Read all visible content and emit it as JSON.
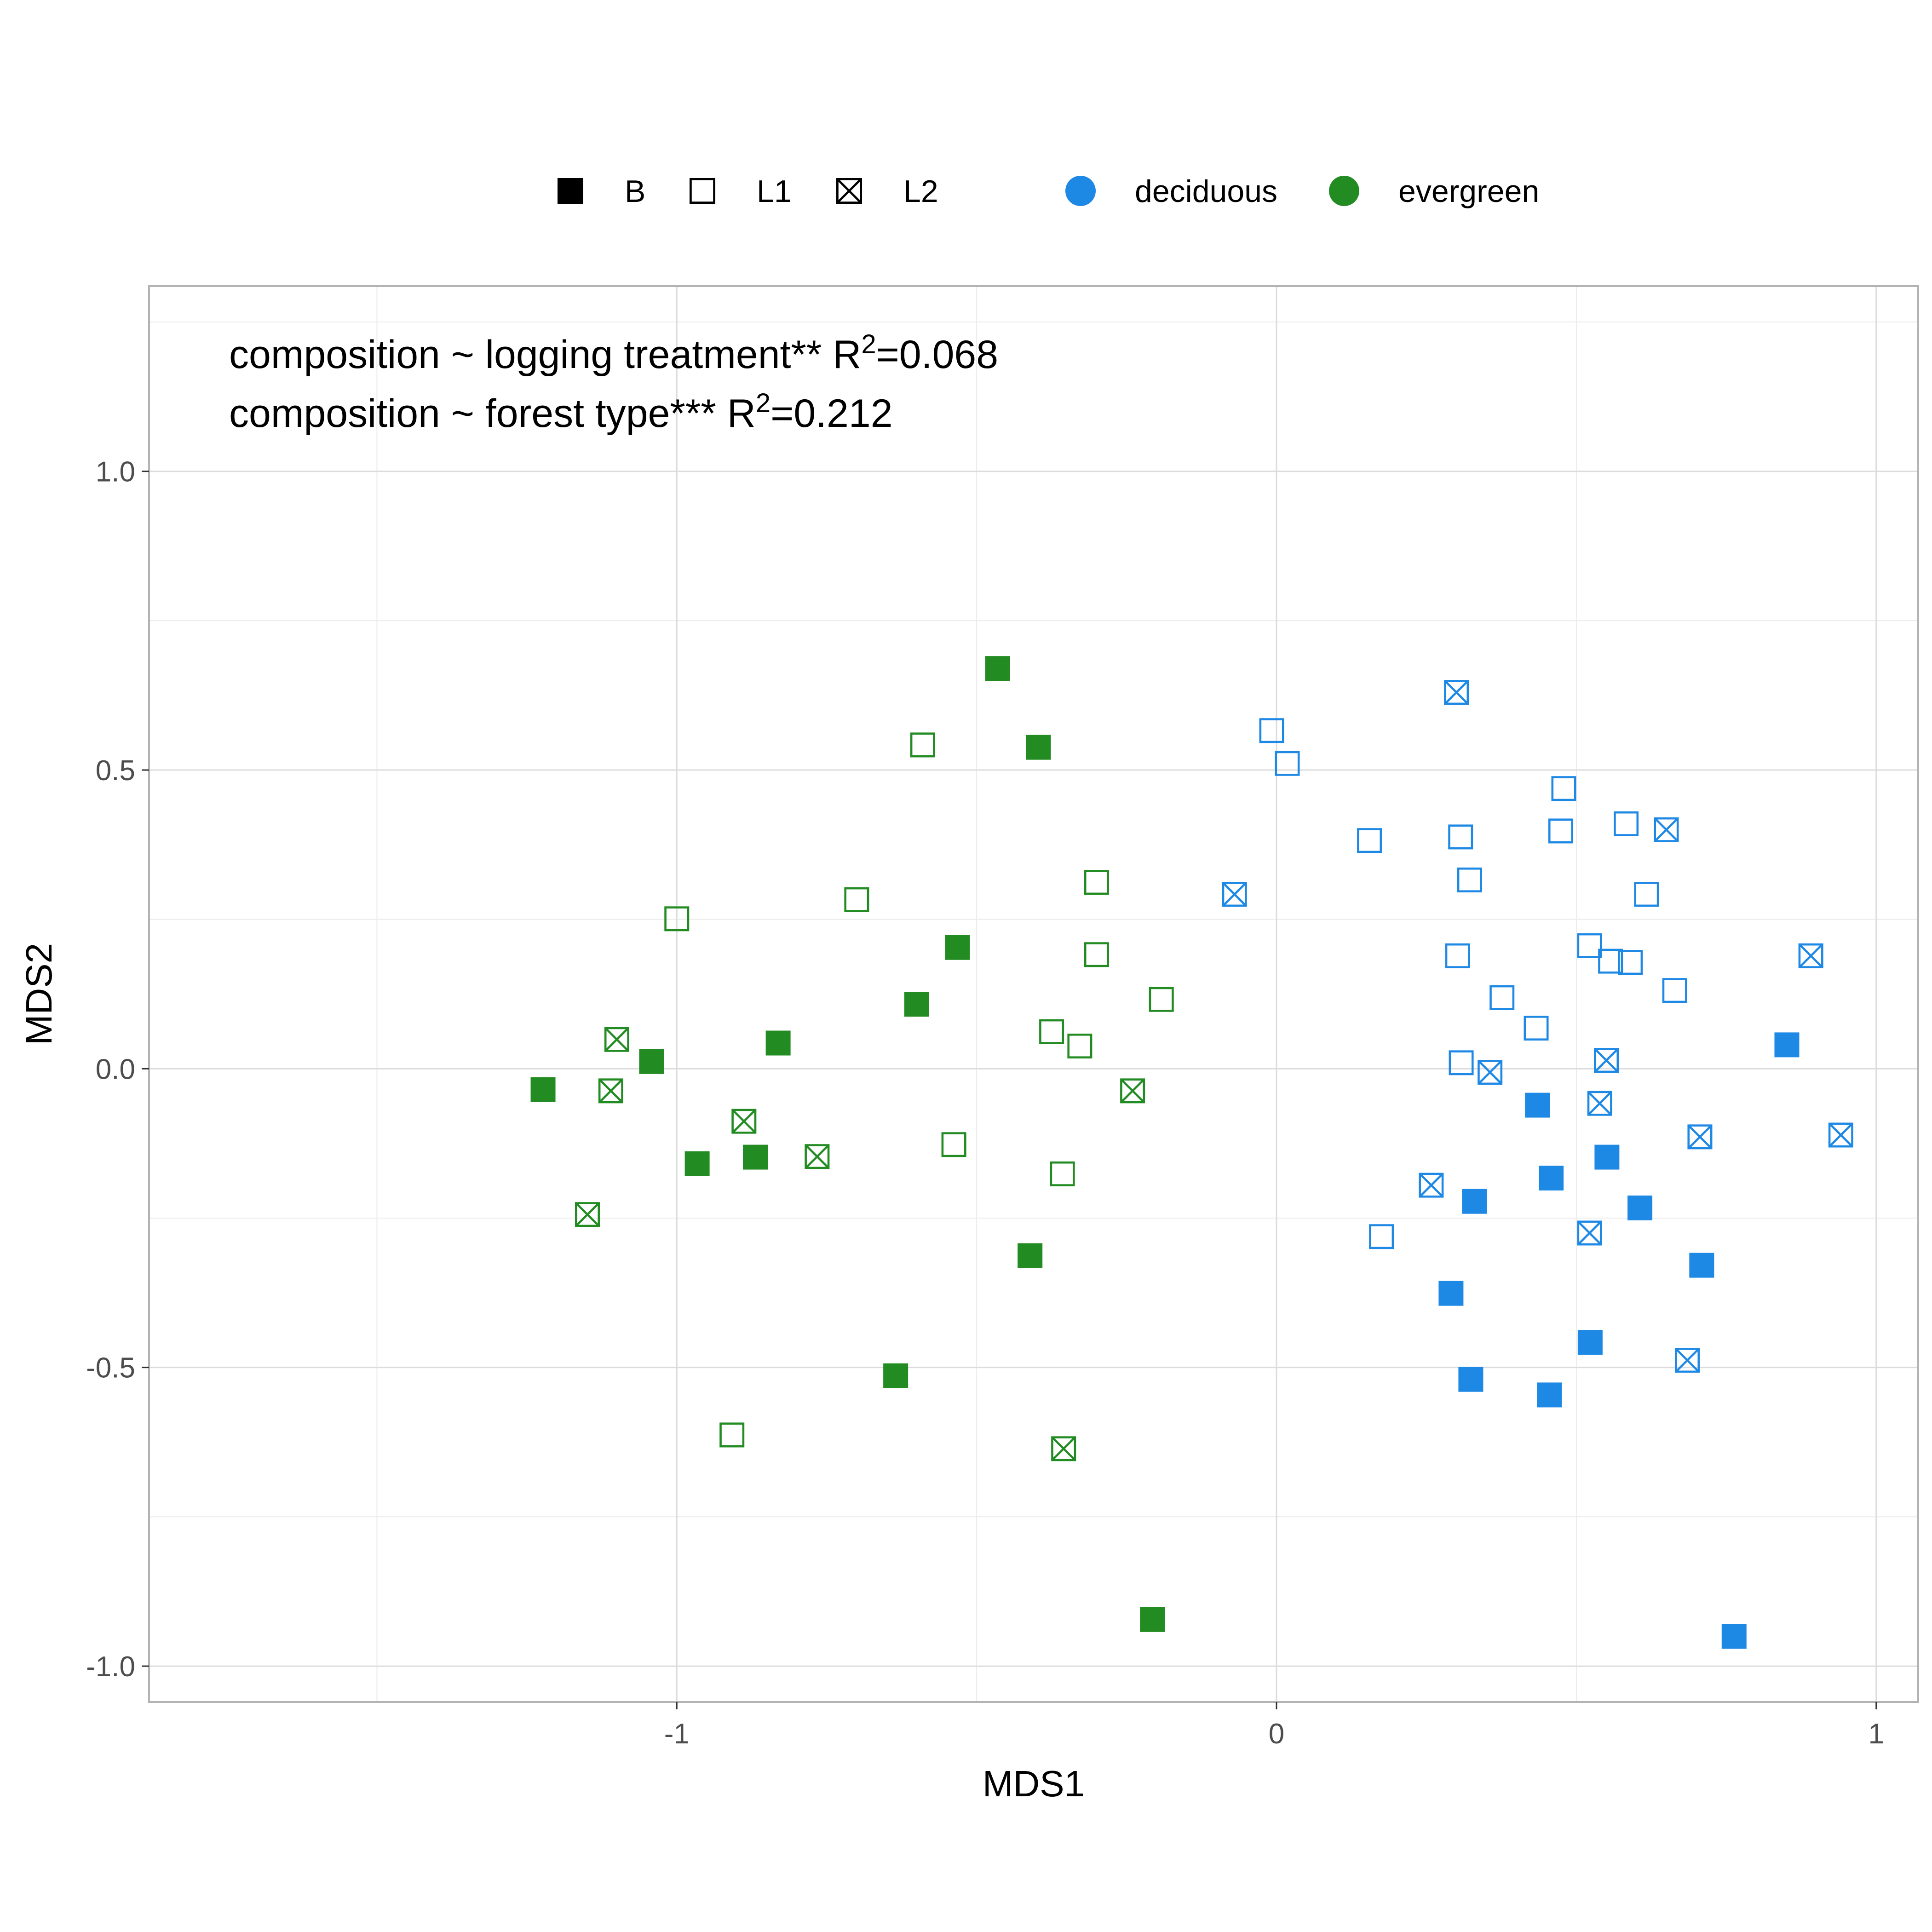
{
  "chart_data": {
    "type": "scatter",
    "xlabel": "MDS1",
    "ylabel": "MDS2",
    "xlim": [
      -1.88,
      1.07
    ],
    "ylim": [
      -1.06,
      1.31
    ],
    "x_ticks": [
      -1,
      0,
      1
    ],
    "x_tick_labels": [
      "-1",
      "0",
      "1"
    ],
    "y_ticks": [
      -1.0,
      -0.5,
      0.0,
      0.5,
      1.0
    ],
    "y_tick_labels": [
      "-1.0",
      "-0.5",
      "0.0",
      "0.5",
      "1.0"
    ],
    "grid": true,
    "legend_placement": "top",
    "legend_shape": [
      {
        "key": "B",
        "label": "B",
        "shape": "filled-square"
      },
      {
        "key": "L1",
        "label": "L1",
        "shape": "open-square"
      },
      {
        "key": "L2",
        "label": "L2",
        "shape": "crossed-square"
      }
    ],
    "legend_color": [
      {
        "key": "deciduous",
        "label": "deciduous",
        "color": "#1E88E5"
      },
      {
        "key": "evergreen",
        "label": "evergreen",
        "color": "#228B22"
      }
    ],
    "annotations": [
      {
        "prefix": "composition ~ logging treatment** R",
        "sup": "2",
        "suffix": "=0.068"
      },
      {
        "prefix": "composition ~ forest type*** R",
        "sup": "2",
        "suffix": "=0.212"
      }
    ],
    "points": [
      {
        "x": -0.465,
        "y": 0.67,
        "treatment": "B",
        "forest": "evergreen"
      },
      {
        "x": -0.397,
        "y": 0.538,
        "treatment": "B",
        "forest": "evergreen"
      },
      {
        "x": -0.532,
        "y": 0.203,
        "treatment": "B",
        "forest": "evergreen"
      },
      {
        "x": -0.6,
        "y": 0.108,
        "treatment": "B",
        "forest": "evergreen"
      },
      {
        "x": -0.831,
        "y": 0.043,
        "treatment": "B",
        "forest": "evergreen"
      },
      {
        "x": -1.042,
        "y": 0.012,
        "treatment": "B",
        "forest": "evergreen"
      },
      {
        "x": -1.223,
        "y": -0.035,
        "treatment": "B",
        "forest": "evergreen"
      },
      {
        "x": -0.966,
        "y": -0.159,
        "treatment": "B",
        "forest": "evergreen"
      },
      {
        "x": -0.869,
        "y": -0.148,
        "treatment": "B",
        "forest": "evergreen"
      },
      {
        "x": -0.411,
        "y": -0.313,
        "treatment": "B",
        "forest": "evergreen"
      },
      {
        "x": -0.635,
        "y": -0.514,
        "treatment": "B",
        "forest": "evergreen"
      },
      {
        "x": -0.207,
        "y": -0.922,
        "treatment": "B",
        "forest": "evergreen"
      },
      {
        "x": -0.59,
        "y": 0.542,
        "treatment": "L1",
        "forest": "evergreen"
      },
      {
        "x": -1.0,
        "y": 0.251,
        "treatment": "L1",
        "forest": "evergreen"
      },
      {
        "x": -0.7,
        "y": 0.283,
        "treatment": "L1",
        "forest": "evergreen"
      },
      {
        "x": -0.3,
        "y": 0.312,
        "treatment": "L1",
        "forest": "evergreen"
      },
      {
        "x": -0.3,
        "y": 0.191,
        "treatment": "L1",
        "forest": "evergreen"
      },
      {
        "x": -0.192,
        "y": 0.116,
        "treatment": "L1",
        "forest": "evergreen"
      },
      {
        "x": -0.375,
        "y": 0.062,
        "treatment": "L1",
        "forest": "evergreen"
      },
      {
        "x": -0.328,
        "y": 0.038,
        "treatment": "L1",
        "forest": "evergreen"
      },
      {
        "x": -0.538,
        "y": -0.127,
        "treatment": "L1",
        "forest": "evergreen"
      },
      {
        "x": -0.357,
        "y": -0.176,
        "treatment": "L1",
        "forest": "evergreen"
      },
      {
        "x": -0.908,
        "y": -0.613,
        "treatment": "L1",
        "forest": "evergreen"
      },
      {
        "x": -1.1,
        "y": 0.049,
        "treatment": "L2",
        "forest": "evergreen"
      },
      {
        "x": -1.11,
        "y": -0.037,
        "treatment": "L2",
        "forest": "evergreen"
      },
      {
        "x": -0.888,
        "y": -0.088,
        "treatment": "L2",
        "forest": "evergreen"
      },
      {
        "x": -0.766,
        "y": -0.147,
        "treatment": "L2",
        "forest": "evergreen"
      },
      {
        "x": -1.149,
        "y": -0.244,
        "treatment": "L2",
        "forest": "evergreen"
      },
      {
        "x": -0.24,
        "y": -0.037,
        "treatment": "L2",
        "forest": "evergreen"
      },
      {
        "x": -0.355,
        "y": -0.636,
        "treatment": "L2",
        "forest": "evergreen"
      },
      {
        "x": 0.851,
        "y": 0.04,
        "treatment": "B",
        "forest": "deciduous"
      },
      {
        "x": 0.435,
        "y": -0.061,
        "treatment": "B",
        "forest": "deciduous"
      },
      {
        "x": 0.458,
        "y": -0.183,
        "treatment": "B",
        "forest": "deciduous"
      },
      {
        "x": 0.551,
        "y": -0.148,
        "treatment": "B",
        "forest": "deciduous"
      },
      {
        "x": 0.33,
        "y": -0.222,
        "treatment": "B",
        "forest": "deciduous"
      },
      {
        "x": 0.606,
        "y": -0.233,
        "treatment": "B",
        "forest": "deciduous"
      },
      {
        "x": 0.709,
        "y": -0.329,
        "treatment": "B",
        "forest": "deciduous"
      },
      {
        "x": 0.291,
        "y": -0.376,
        "treatment": "B",
        "forest": "deciduous"
      },
      {
        "x": 0.523,
        "y": -0.458,
        "treatment": "B",
        "forest": "deciduous"
      },
      {
        "x": 0.324,
        "y": -0.52,
        "treatment": "B",
        "forest": "deciduous"
      },
      {
        "x": 0.455,
        "y": -0.546,
        "treatment": "B",
        "forest": "deciduous"
      },
      {
        "x": 0.763,
        "y": -0.95,
        "treatment": "B",
        "forest": "deciduous"
      },
      {
        "x": -0.008,
        "y": 0.566,
        "treatment": "L1",
        "forest": "deciduous"
      },
      {
        "x": 0.018,
        "y": 0.511,
        "treatment": "L1",
        "forest": "deciduous"
      },
      {
        "x": 0.479,
        "y": 0.469,
        "treatment": "L1",
        "forest": "deciduous"
      },
      {
        "x": 0.583,
        "y": 0.41,
        "treatment": "L1",
        "forest": "deciduous"
      },
      {
        "x": 0.474,
        "y": 0.398,
        "treatment": "L1",
        "forest": "deciduous"
      },
      {
        "x": 0.155,
        "y": 0.382,
        "treatment": "L1",
        "forest": "deciduous"
      },
      {
        "x": 0.307,
        "y": 0.388,
        "treatment": "L1",
        "forest": "deciduous"
      },
      {
        "x": 0.322,
        "y": 0.316,
        "treatment": "L1",
        "forest": "deciduous"
      },
      {
        "x": 0.617,
        "y": 0.292,
        "treatment": "L1",
        "forest": "deciduous"
      },
      {
        "x": 0.522,
        "y": 0.206,
        "treatment": "L1",
        "forest": "deciduous"
      },
      {
        "x": 0.557,
        "y": 0.18,
        "treatment": "L1",
        "forest": "deciduous"
      },
      {
        "x": 0.59,
        "y": 0.178,
        "treatment": "L1",
        "forest": "deciduous"
      },
      {
        "x": 0.302,
        "y": 0.189,
        "treatment": "L1",
        "forest": "deciduous"
      },
      {
        "x": 0.664,
        "y": 0.131,
        "treatment": "L1",
        "forest": "deciduous"
      },
      {
        "x": 0.376,
        "y": 0.119,
        "treatment": "L1",
        "forest": "deciduous"
      },
      {
        "x": 0.433,
        "y": 0.068,
        "treatment": "L1",
        "forest": "deciduous"
      },
      {
        "x": 0.308,
        "y": 0.01,
        "treatment": "L1",
        "forest": "deciduous"
      },
      {
        "x": 0.175,
        "y": -0.281,
        "treatment": "L1",
        "forest": "deciduous"
      },
      {
        "x": 0.3,
        "y": 0.63,
        "treatment": "L2",
        "forest": "deciduous"
      },
      {
        "x": 0.65,
        "y": 0.4,
        "treatment": "L2",
        "forest": "deciduous"
      },
      {
        "x": -0.07,
        "y": 0.292,
        "treatment": "L2",
        "forest": "deciduous"
      },
      {
        "x": 0.891,
        "y": 0.189,
        "treatment": "L2",
        "forest": "deciduous"
      },
      {
        "x": 0.55,
        "y": 0.014,
        "treatment": "L2",
        "forest": "deciduous"
      },
      {
        "x": 0.356,
        "y": -0.006,
        "treatment": "L2",
        "forest": "deciduous"
      },
      {
        "x": 0.539,
        "y": -0.058,
        "treatment": "L2",
        "forest": "deciduous"
      },
      {
        "x": 0.706,
        "y": -0.114,
        "treatment": "L2",
        "forest": "deciduous"
      },
      {
        "x": 0.941,
        "y": -0.111,
        "treatment": "L2",
        "forest": "deciduous"
      },
      {
        "x": 0.258,
        "y": -0.195,
        "treatment": "L2",
        "forest": "deciduous"
      },
      {
        "x": 0.522,
        "y": -0.275,
        "treatment": "L2",
        "forest": "deciduous"
      },
      {
        "x": 0.685,
        "y": -0.488,
        "treatment": "L2",
        "forest": "deciduous"
      }
    ]
  }
}
